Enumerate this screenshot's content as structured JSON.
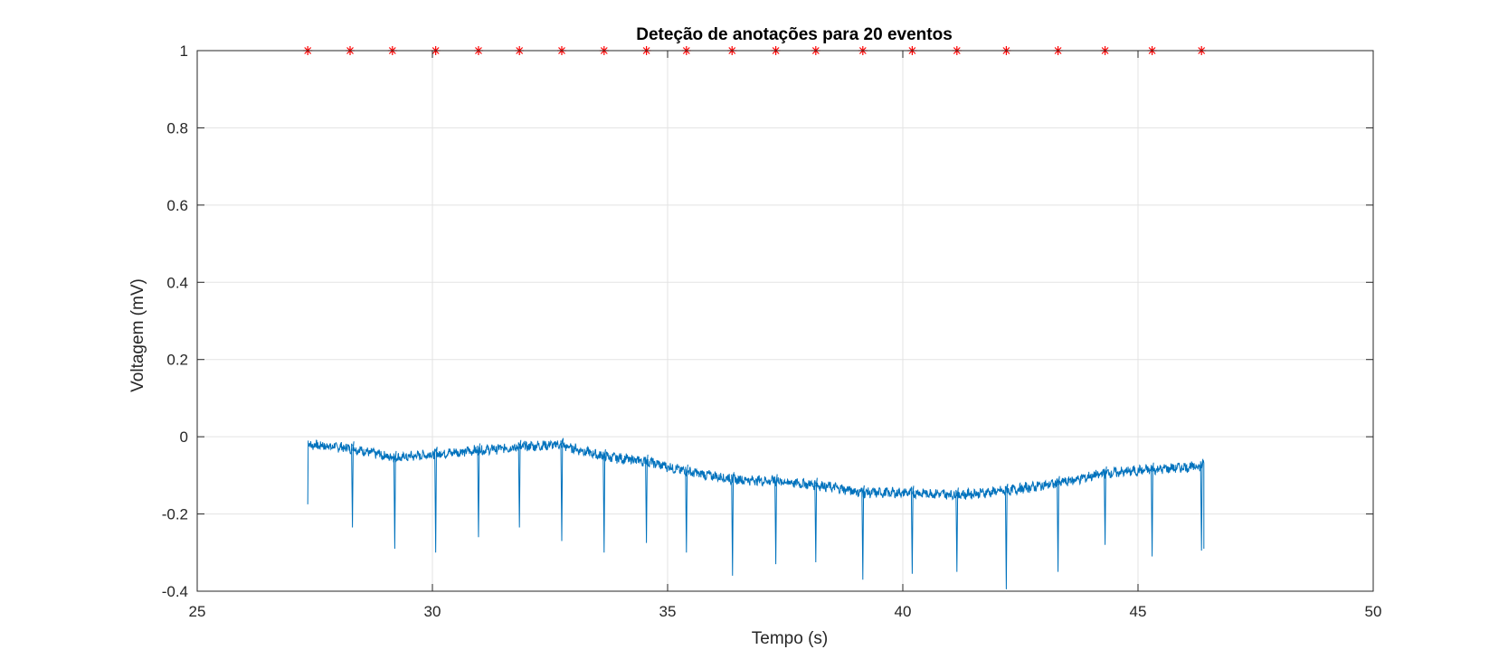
{
  "chart_data": {
    "type": "line",
    "title": "Deteção de anotações para 20 eventos",
    "xlabel": "Tempo (s)",
    "ylabel": "Voltagem (mV)",
    "xlim": [
      25,
      50
    ],
    "ylim": [
      -0.4,
      1
    ],
    "xticks": [
      25,
      30,
      35,
      40,
      45,
      50
    ],
    "xtick_labels": [
      "25",
      "30",
      "35",
      "40",
      "45",
      "50"
    ],
    "yticks": [
      -0.4,
      -0.2,
      0,
      0.2,
      0.4,
      0.6,
      0.8,
      1
    ],
    "ytick_labels": [
      "-0.4",
      "-0.2",
      "0",
      "0.2",
      "0.4",
      "0.6",
      "0.8",
      "1"
    ],
    "grid": true,
    "series": [
      {
        "kind": "signal",
        "color": "#0072BD",
        "x_range": [
          27.35,
          46.4
        ],
        "baseline": {
          "x": [
            27.35,
            28.3,
            29.2,
            30.0,
            31.0,
            32.0,
            32.7,
            33.6,
            34.6,
            35.4,
            36.4,
            37.3,
            38.2,
            39.2,
            40.2,
            41.2,
            42.2,
            43.3,
            44.3,
            45.3,
            46.4
          ],
          "y": [
            -0.02,
            -0.03,
            -0.055,
            -0.045,
            -0.035,
            -0.025,
            -0.02,
            -0.05,
            -0.065,
            -0.09,
            -0.11,
            -0.115,
            -0.125,
            -0.145,
            -0.145,
            -0.15,
            -0.14,
            -0.12,
            -0.095,
            -0.085,
            -0.075
          ]
        },
        "spikes": {
          "x": [
            28.3,
            29.2,
            30.07,
            30.98,
            31.85,
            32.75,
            33.65,
            34.55,
            35.4,
            36.38,
            37.3,
            38.15,
            39.15,
            40.2,
            41.15,
            42.2,
            43.3,
            44.3,
            45.3,
            46.35
          ],
          "y": [
            -0.235,
            -0.29,
            -0.3,
            -0.26,
            -0.235,
            -0.27,
            -0.3,
            -0.275,
            -0.3,
            -0.36,
            -0.33,
            -0.325,
            -0.37,
            -0.355,
            -0.35,
            -0.395,
            -0.35,
            -0.28,
            -0.31,
            -0.295
          ]
        },
        "start_value": -0.175
      },
      {
        "kind": "markers",
        "marker": "asterisk",
        "color": "#FF0000",
        "x": [
          27.35,
          28.25,
          29.15,
          30.07,
          30.98,
          31.85,
          32.75,
          33.65,
          34.55,
          35.4,
          36.37,
          37.3,
          38.15,
          39.15,
          40.2,
          41.15,
          42.2,
          43.3,
          44.3,
          45.3,
          46.35
        ],
        "y": [
          1,
          1,
          1,
          1,
          1,
          1,
          1,
          1,
          1,
          1,
          1,
          1,
          1,
          1,
          1,
          1,
          1,
          1,
          1,
          1,
          1
        ]
      }
    ]
  }
}
